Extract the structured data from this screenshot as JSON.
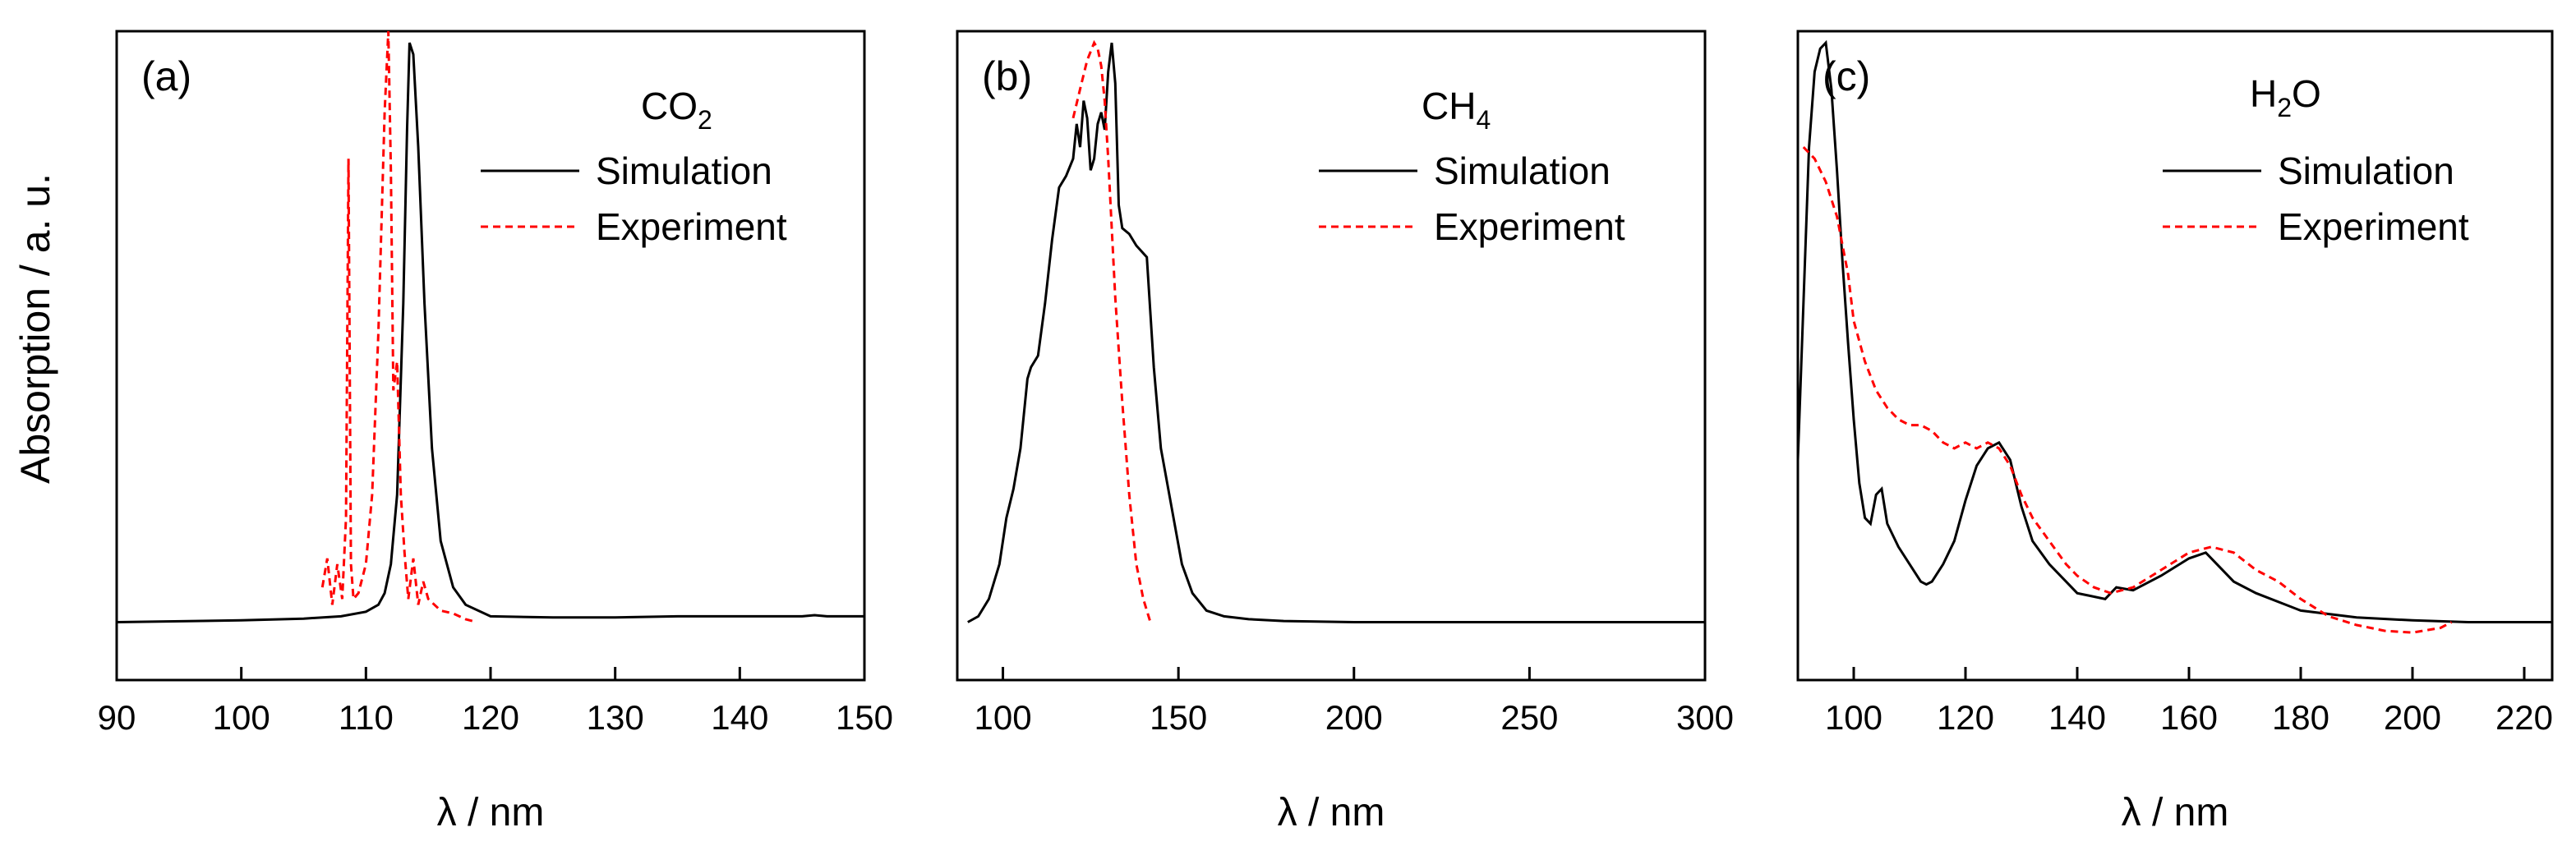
{
  "figure": {
    "ylabel": "Absorption / a. u."
  },
  "chart_data": [
    {
      "type": "line",
      "panel_label": "(a)",
      "molecule_main": "CO",
      "molecule_sub": "2",
      "xlabel": "λ / nm",
      "ylabel": "Absorption / a. u.",
      "xlim": [
        90,
        150
      ],
      "ylim": [
        -0.1,
        1.02
      ],
      "xticks": [
        90,
        100,
        110,
        120,
        130,
        140,
        150
      ],
      "xtick_labels": [
        "90",
        "100",
        "110",
        "120",
        "130",
        "140",
        "150"
      ],
      "legend_position": "top-right",
      "series": [
        {
          "name": "Simulation",
          "color": "#000000",
          "style": "solid",
          "x": [
            90,
            100,
            105,
            108,
            110,
            111,
            111.5,
            112,
            112.5,
            113,
            113.3,
            113.5,
            113.8,
            114.2,
            114.7,
            115.3,
            116,
            117,
            118,
            120,
            125,
            130,
            135,
            140,
            145,
            146,
            147,
            150
          ],
          "y": [
            0.0,
            0.003,
            0.006,
            0.01,
            0.018,
            0.03,
            0.05,
            0.1,
            0.22,
            0.55,
            0.85,
            1.0,
            0.98,
            0.82,
            0.55,
            0.3,
            0.14,
            0.06,
            0.03,
            0.01,
            0.008,
            0.008,
            0.01,
            0.01,
            0.01,
            0.012,
            0.01,
            0.01
          ]
        },
        {
          "name": "Experiment",
          "color": "#ff0000",
          "style": "dashed",
          "x": [
            106.5,
            106.9,
            107.3,
            107.7,
            108.1,
            108.4,
            108.6,
            108.8,
            109.0,
            109.4,
            110.0,
            110.5,
            111.0,
            111.5,
            111.8,
            112.0,
            112.2,
            112.5,
            112.8,
            113.1,
            113.4,
            113.8,
            114.2,
            114.6,
            115.0,
            116.0,
            117.0,
            118.0,
            118.9
          ],
          "y": [
            0.06,
            0.11,
            0.03,
            0.1,
            0.04,
            0.18,
            0.8,
            0.1,
            0.04,
            0.05,
            0.1,
            0.22,
            0.5,
            0.88,
            1.02,
            0.78,
            0.4,
            0.45,
            0.22,
            0.12,
            0.04,
            0.11,
            0.03,
            0.07,
            0.04,
            0.02,
            0.015,
            0.005,
            0.0
          ]
        }
      ]
    },
    {
      "type": "line",
      "panel_label": "(b)",
      "molecule_main": "CH",
      "molecule_sub": "4",
      "xlabel": "λ / nm",
      "ylabel": "Absorption / a. u.",
      "xlim": [
        87,
        300
      ],
      "ylim": [
        -0.1,
        1.02
      ],
      "xticks": [
        100,
        150,
        200,
        250,
        300
      ],
      "xtick_labels": [
        "100",
        "150",
        "200",
        "250",
        "300"
      ],
      "legend_position": "top-right",
      "series": [
        {
          "name": "Simulation",
          "color": "#000000",
          "style": "solid",
          "x": [
            90,
            93,
            96,
            99,
            101,
            103,
            105,
            107,
            108,
            110,
            112,
            114,
            116,
            118,
            120,
            121,
            122,
            123,
            124,
            125,
            126,
            127,
            128,
            129,
            130,
            131,
            132,
            133,
            134,
            136,
            138,
            141,
            143,
            145,
            148,
            151,
            154,
            158,
            163,
            170,
            180,
            200,
            250,
            300
          ],
          "y": [
            0.0,
            0.01,
            0.04,
            0.1,
            0.18,
            0.23,
            0.3,
            0.42,
            0.44,
            0.46,
            0.55,
            0.66,
            0.75,
            0.77,
            0.8,
            0.86,
            0.82,
            0.9,
            0.87,
            0.78,
            0.8,
            0.86,
            0.88,
            0.85,
            0.95,
            1.0,
            0.93,
            0.72,
            0.68,
            0.67,
            0.65,
            0.63,
            0.44,
            0.3,
            0.2,
            0.1,
            0.05,
            0.02,
            0.01,
            0.005,
            0.002,
            0.0,
            0.0,
            0.0
          ]
        },
        {
          "name": "Experiment",
          "color": "#ff0000",
          "style": "dashed",
          "x": [
            120,
            122,
            124,
            126,
            127,
            128,
            129,
            130,
            131,
            132,
            133,
            134,
            135,
            136,
            137,
            138,
            139,
            140,
            141,
            142
          ],
          "y": [
            0.87,
            0.92,
            0.97,
            1.0,
            0.99,
            0.96,
            0.9,
            0.8,
            0.68,
            0.56,
            0.47,
            0.38,
            0.3,
            0.22,
            0.16,
            0.1,
            0.07,
            0.04,
            0.02,
            0.0
          ]
        }
      ]
    },
    {
      "type": "line",
      "panel_label": "(c)",
      "molecule_main": "H",
      "molecule_sub": "2",
      "molecule_tail": "O",
      "xlabel": "λ / nm",
      "ylabel": "Absorption / a. u.",
      "xlim": [
        90,
        225
      ],
      "ylim": [
        -0.1,
        1.02
      ],
      "xticks": [
        100,
        120,
        140,
        160,
        180,
        200,
        220
      ],
      "xtick_labels": [
        "100",
        "120",
        "140",
        "160",
        "180",
        "200",
        "220"
      ],
      "legend_position": "top-right",
      "series": [
        {
          "name": "Simulation",
          "color": "#000000",
          "style": "solid",
          "x": [
            90,
            91,
            92,
            93,
            94,
            95,
            96,
            97,
            98,
            99,
            100,
            101,
            102,
            103,
            104,
            105,
            106,
            108,
            110,
            112,
            113,
            114,
            116,
            118,
            120,
            122,
            124,
            126,
            128,
            130,
            132,
            135,
            140,
            145,
            147,
            150,
            155,
            160,
            163,
            165,
            168,
            172,
            180,
            190,
            200,
            210,
            225
          ],
          "y": [
            0.28,
            0.55,
            0.82,
            0.95,
            0.99,
            1.0,
            0.92,
            0.78,
            0.62,
            0.48,
            0.35,
            0.24,
            0.18,
            0.17,
            0.22,
            0.23,
            0.17,
            0.13,
            0.1,
            0.07,
            0.065,
            0.07,
            0.1,
            0.14,
            0.21,
            0.27,
            0.3,
            0.31,
            0.28,
            0.2,
            0.14,
            0.1,
            0.05,
            0.04,
            0.06,
            0.055,
            0.08,
            0.11,
            0.12,
            0.1,
            0.07,
            0.05,
            0.02,
            0.008,
            0.003,
            0.0,
            0.0
          ]
        },
        {
          "name": "Experiment",
          "color": "#ff0000",
          "style": "dashed",
          "x": [
            91,
            93,
            95,
            97,
            99,
            100,
            102,
            104,
            106,
            108,
            110,
            112,
            114,
            116,
            118,
            120,
            122,
            124,
            126,
            128,
            130,
            132,
            135,
            138,
            140,
            143,
            146,
            150,
            155,
            160,
            164,
            168,
            172,
            176,
            180,
            185,
            190,
            195,
            200,
            205,
            207
          ],
          "y": [
            0.82,
            0.8,
            0.76,
            0.7,
            0.6,
            0.52,
            0.45,
            0.4,
            0.37,
            0.35,
            0.34,
            0.34,
            0.33,
            0.31,
            0.3,
            0.31,
            0.3,
            0.31,
            0.3,
            0.27,
            0.22,
            0.18,
            0.14,
            0.1,
            0.08,
            0.06,
            0.05,
            0.06,
            0.09,
            0.12,
            0.13,
            0.12,
            0.09,
            0.07,
            0.04,
            0.01,
            -0.005,
            -0.015,
            -0.018,
            -0.01,
            0.0
          ]
        }
      ]
    }
  ]
}
